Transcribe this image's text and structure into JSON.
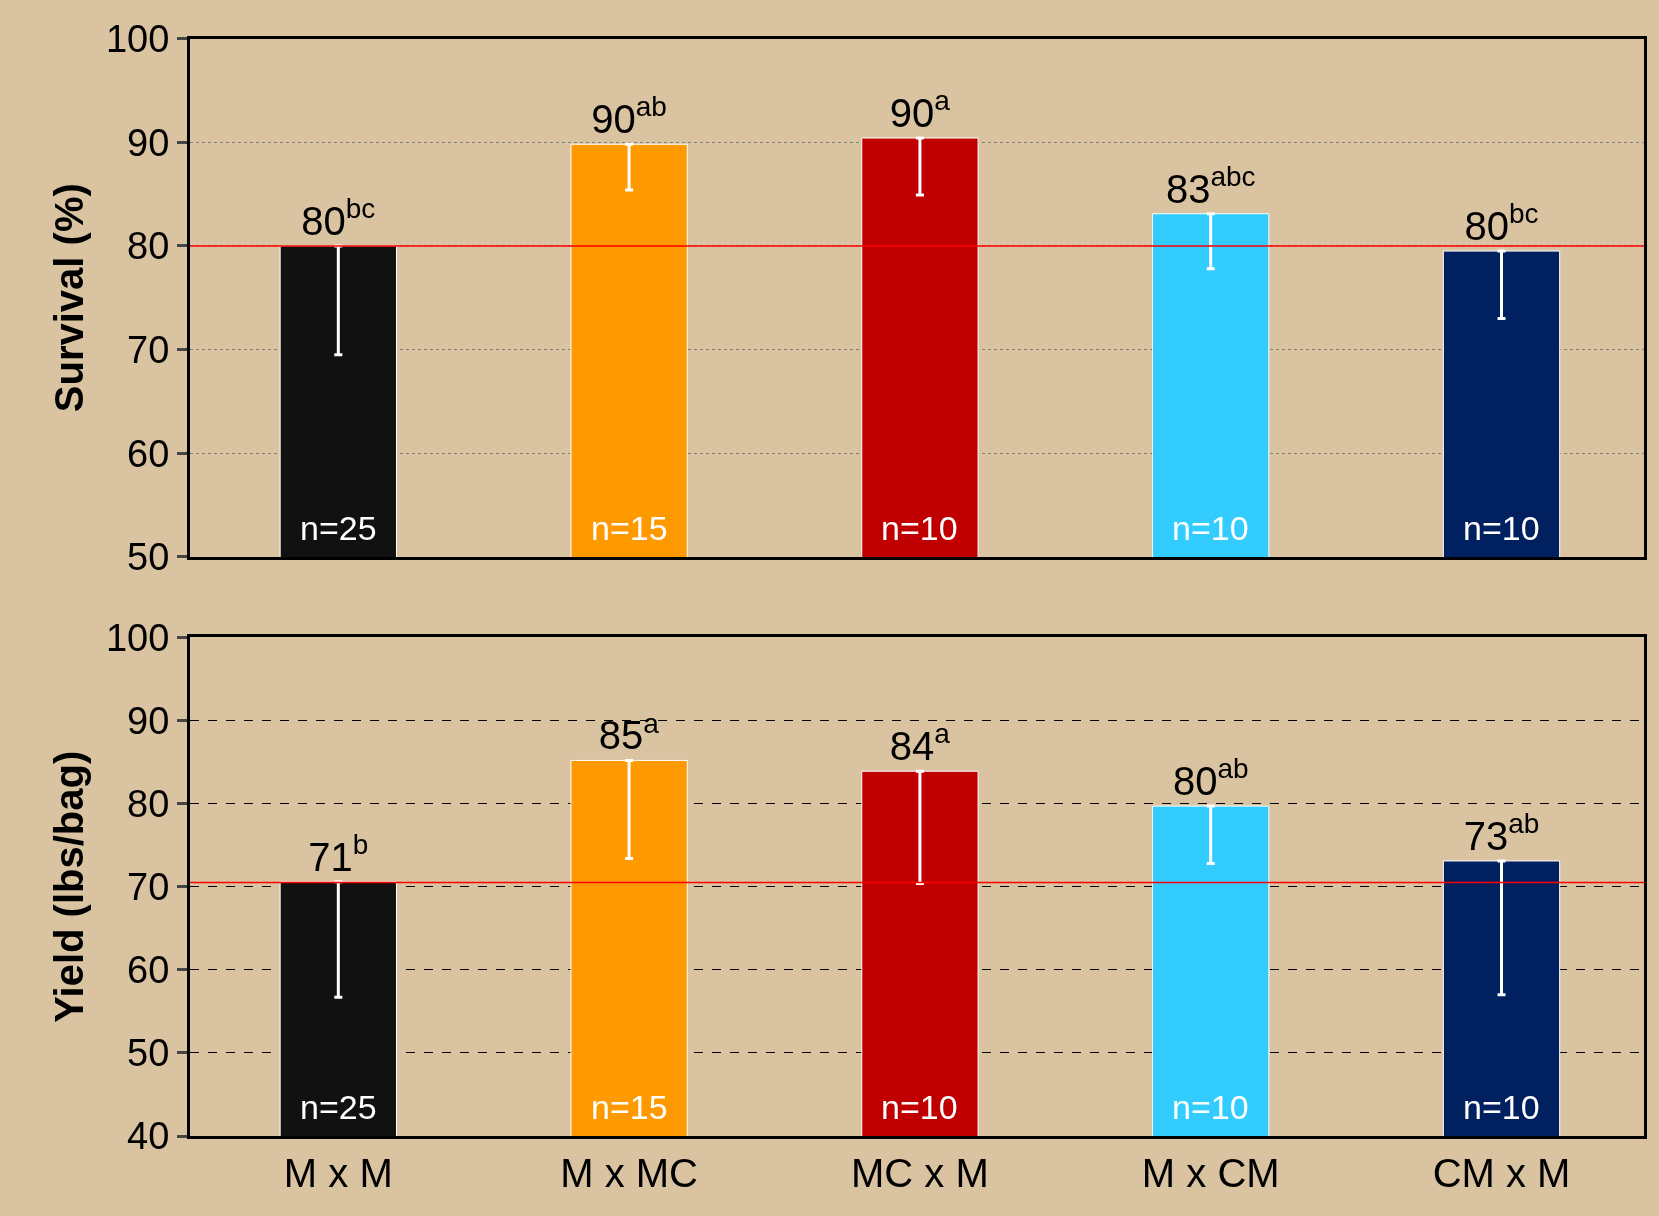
{
  "chart_data": [
    {
      "type": "bar",
      "ylabel": "Survival (%)",
      "categories": [
        null,
        null,
        null,
        null,
        null
      ],
      "tick_labels": "y",
      "values": [
        80,
        89.8,
        90.4,
        83.1,
        79.5
      ],
      "colors": [
        "#111111",
        "#ff9900",
        "#c00000",
        "#33ccff",
        "#002060"
      ],
      "errors": [
        [
          69.5,
          80
        ],
        [
          85.4,
          89.8
        ],
        [
          84.9,
          90.4
        ],
        [
          77.8,
          83.1
        ],
        [
          73.0,
          79.5
        ]
      ],
      "value_labels": [
        "80$^{bc}$",
        "90$^{ab}$",
        "90$^{a}$",
        "83$^{abc}$",
        "80$^{bc}$"
      ],
      "annotations": [
        "n=25",
        "n=15",
        "n=10",
        "n=10",
        "n=10"
      ],
      "ylim": [
        50,
        100
      ],
      "yticks": [
        50,
        60,
        70,
        80,
        90,
        100
      ],
      "grid": "y",
      "ref_lines": [
        {
          "axis": "y",
          "value": 80,
          "color": "#ff0000"
        }
      ]
    },
    {
      "type": "bar",
      "ylabel": "Yield (lbs/bag)",
      "categories": [
        "M x M",
        "M x MC",
        "MC x M",
        "M x CM",
        "CM x M"
      ],
      "values": [
        70.6,
        85.2,
        83.9,
        79.7,
        73.1
      ],
      "colors": [
        "#111111",
        "#ff9900",
        "#c00000",
        "#33ccff",
        "#002060"
      ],
      "errors": [
        [
          56.7,
          70.6
        ],
        [
          73.4,
          85.2
        ],
        [
          70.4,
          83.9
        ],
        [
          72.8,
          79.7
        ],
        [
          57.0,
          73.1
        ]
      ],
      "value_labels": [
        "71$^{b}$",
        "85$^{a}$",
        "84$^{a}$",
        "80$^{ab}$",
        "73$^{ab}$"
      ],
      "annotations": [
        "n=25",
        "n=15",
        "n=10",
        "n=10",
        "n=10"
      ],
      "ylim": [
        40,
        100
      ],
      "yticks": [
        40,
        50,
        60,
        70,
        80,
        90,
        100
      ],
      "grid": "y",
      "ref_lines": [
        {
          "axis": "y",
          "value": 70.5,
          "color": "#ff0000"
        }
      ]
    }
  ]
}
